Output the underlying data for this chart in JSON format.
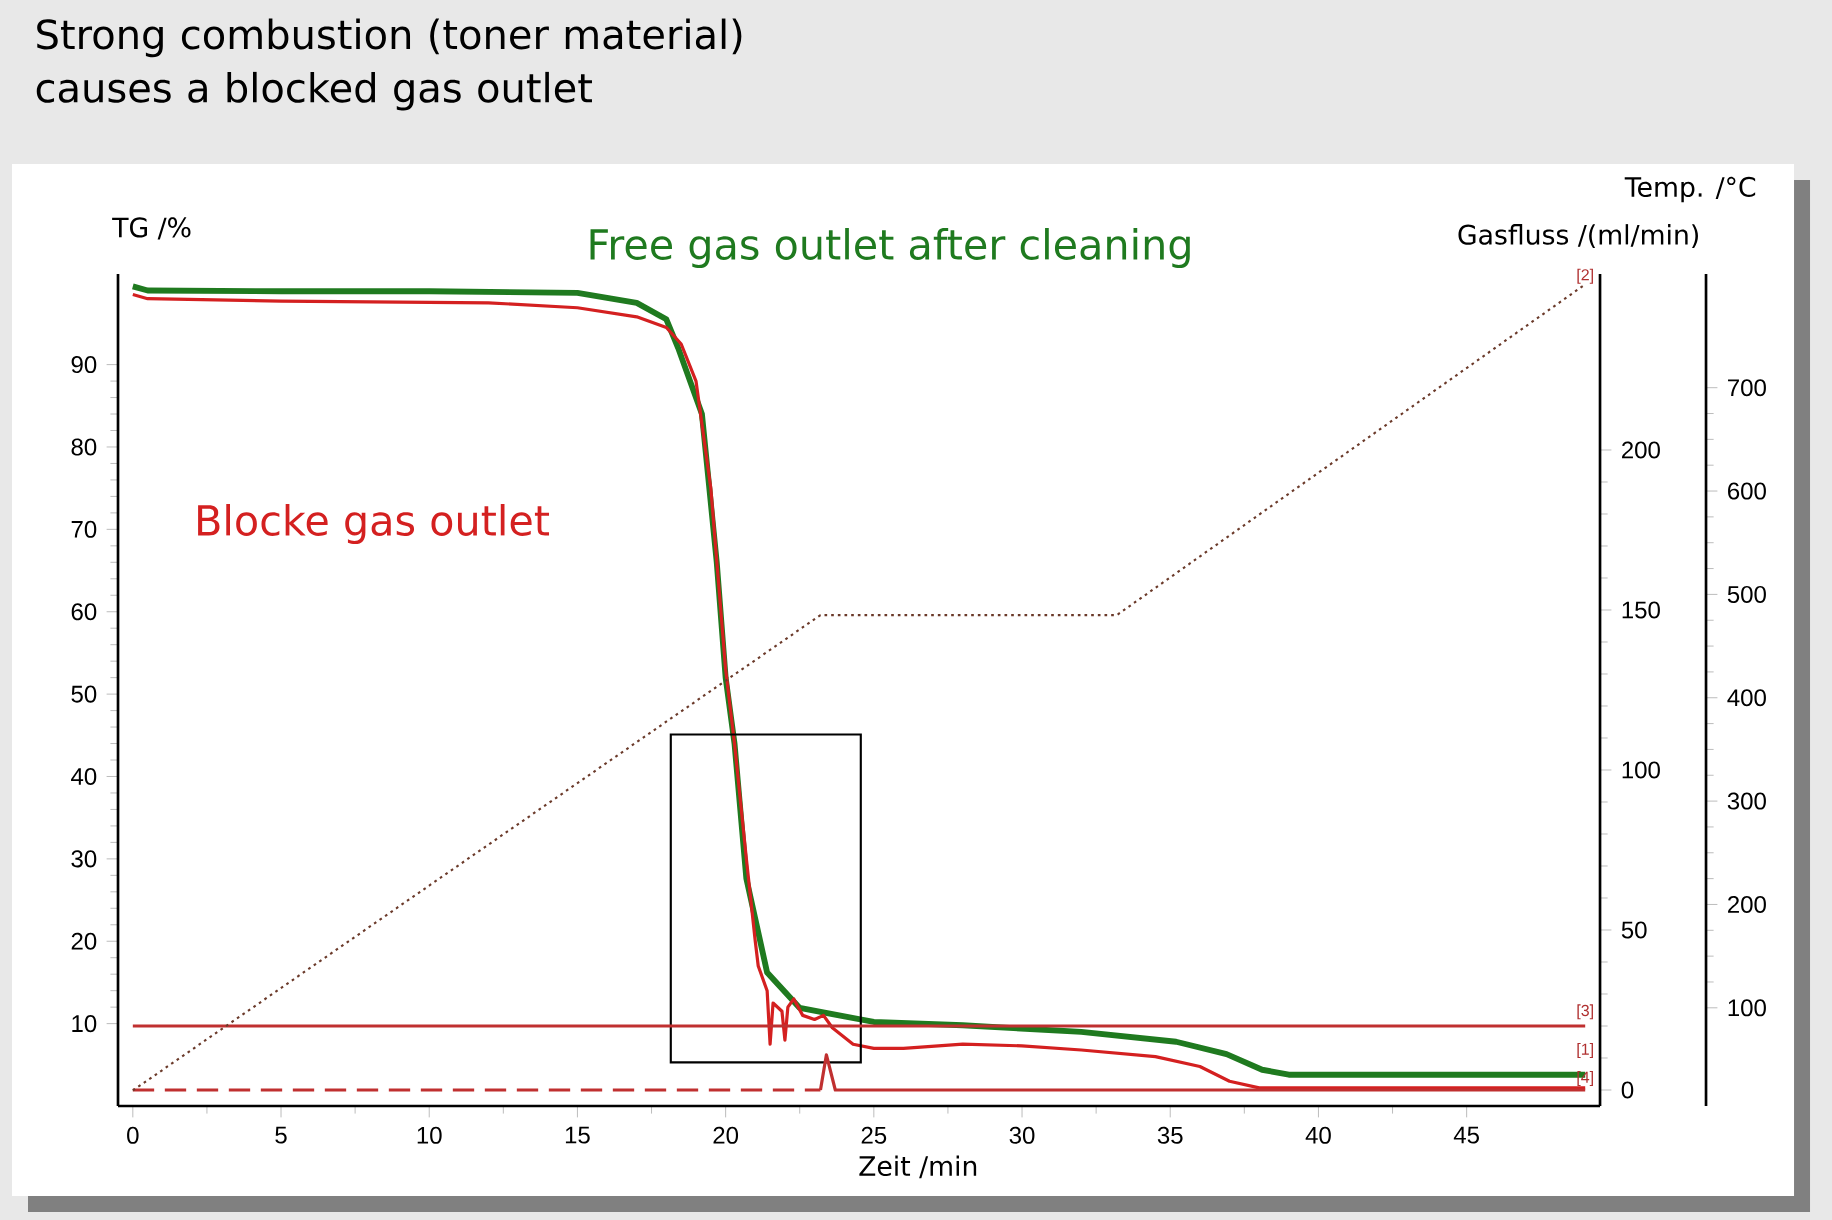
{
  "chart_data": {
    "type": "line",
    "title": "Strong combustion (toner material) causes a blocked gas outlet",
    "xlabel": "Zeit /min",
    "ylabel": "TG /%",
    "y2label": "Gasfluss /(ml/min)",
    "y3label": "Temp. /°C",
    "xlim": [
      -0.5,
      49.5
    ],
    "xticks": [
      0,
      5,
      10,
      15,
      20,
      25,
      30,
      35,
      40,
      45
    ],
    "ylim": [
      0,
      101
    ],
    "yticks": [
      10,
      20,
      30,
      40,
      50,
      60,
      70,
      80,
      90
    ],
    "y2lim": [
      -5,
      255
    ],
    "y2ticks": [
      0,
      50,
      100,
      150,
      200
    ],
    "y3lim": [
      5,
      810
    ],
    "y3ticks": [
      100,
      200,
      300,
      400,
      500,
      600,
      700
    ],
    "series": [
      {
        "name": "Free gas outlet after cleaning",
        "color": "#1f7a1f",
        "x": [
          0,
          0.5,
          5,
          10,
          15,
          17,
          18,
          18.4,
          19.2,
          19.7,
          20.0,
          20.3,
          20.7,
          21.4,
          22.5,
          25,
          28,
          32,
          35.2,
          36.9,
          38.1,
          39,
          49
        ],
        "values": [
          99.5,
          99.0,
          98.9,
          98.9,
          98.7,
          97.5,
          95.5,
          92,
          84,
          66,
          52,
          44,
          27.6,
          16.2,
          11.9,
          10.2,
          9.8,
          9.0,
          7.8,
          6.3,
          4.4,
          3.8,
          3.8
        ]
      },
      {
        "name": "Blocke gas outlet",
        "color": "#d42020",
        "x": [
          0,
          0.5,
          5,
          12,
          15,
          17,
          18,
          18.5,
          19,
          19.5,
          20,
          20.3,
          20.7,
          21,
          21.1,
          21.4,
          21.5,
          21.6,
          21.9,
          22.0,
          22.1,
          22.3,
          22.6,
          23.0,
          23.3,
          23.6,
          24.3,
          25,
          26,
          28,
          30,
          32,
          34.5,
          36,
          37,
          38,
          49
        ],
        "values": [
          98.5,
          98.0,
          97.7,
          97.5,
          96.9,
          95.8,
          94.5,
          92.5,
          88,
          75,
          53,
          44,
          30,
          20,
          17,
          14,
          7.5,
          12.5,
          11.5,
          8.0,
          12,
          13,
          11,
          10.5,
          11,
          9.5,
          7.5,
          7.0,
          7.0,
          7.5,
          7.3,
          6.8,
          6.0,
          4.8,
          3.0,
          2.2,
          2.2
        ]
      },
      {
        "color": "#c03030",
        "axis": "y2",
        "x": [
          0,
          49
        ],
        "values": [
          20,
          20
        ]
      },
      {
        "color": "#c03030",
        "axis": "y2",
        "line_style": "dashed",
        "x": [
          0,
          23.2
        ],
        "values": [
          0,
          0
        ]
      },
      {
        "color": "#c03030",
        "axis": "y2",
        "x": [
          23.2,
          23.4,
          23.7,
          49
        ],
        "values": [
          0,
          11,
          0,
          0
        ]
      },
      {
        "color": "#6b3a2a",
        "axis": "y3",
        "line_style": "dotted",
        "x": [
          0,
          23.2,
          33.2,
          49
        ],
        "values": [
          20,
          480,
          480,
          800
        ]
      }
    ],
    "annotations": [
      "[2]",
      "[3]",
      "[1]",
      "[4]"
    ]
  }
}
